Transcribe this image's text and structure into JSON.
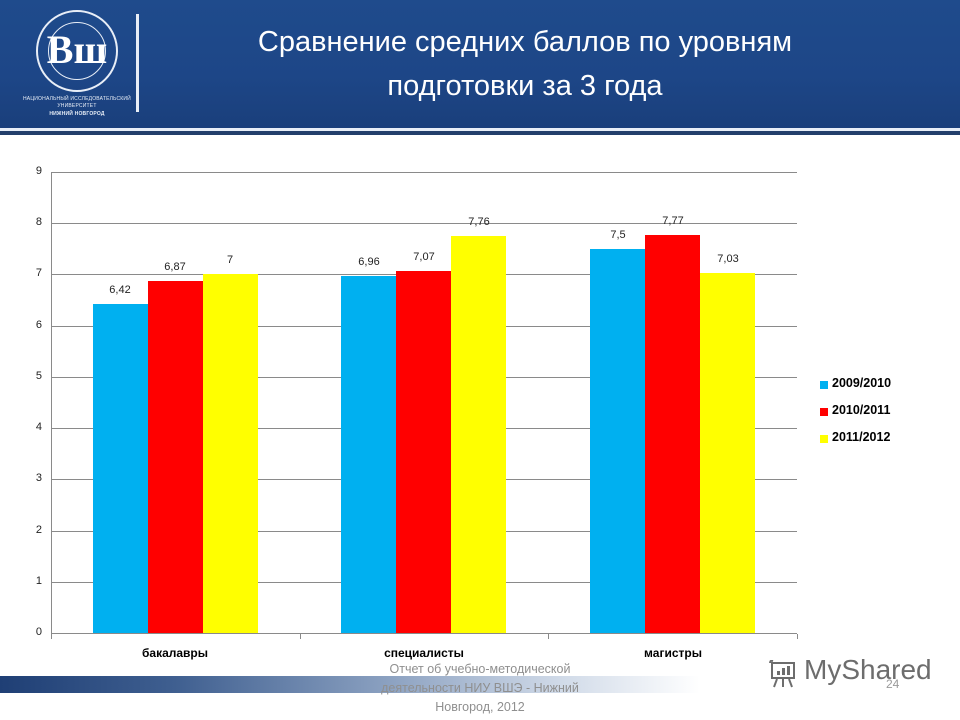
{
  "header": {
    "title_line1": "Сравнение средних баллов по уровням",
    "title_line2": "подготовки за 3 года",
    "logo": {
      "glyph": "Вш",
      "line1": "НАЦИОНАЛЬНЫЙ ИССЛЕДОВАТЕЛЬСКИЙ",
      "line2": "УНИВЕРСИТЕТ",
      "line3": "НИЖНИЙ НОВГОРОД"
    }
  },
  "colors": {
    "header_bg": "#1f4b8c",
    "series_2009": "#00b0f0",
    "series_2010": "#ff0000",
    "series_2011": "#ffff00"
  },
  "chart_data": {
    "type": "bar",
    "title": "Сравнение средних баллов по уровням подготовки за 3 года",
    "xlabel": "",
    "ylabel": "",
    "ylim": [
      0,
      9
    ],
    "yticks": [
      "0",
      "1",
      "2",
      "3",
      "4",
      "5",
      "6",
      "7",
      "8",
      "9"
    ],
    "grid": true,
    "legend_position": "right",
    "categories": [
      "бакалавры",
      "специалисты",
      "магистры"
    ],
    "series": [
      {
        "name": "2009/2010",
        "color": "#00b0f0",
        "values": [
          6.42,
          6.96,
          7.5
        ],
        "labels": [
          "6,42",
          "6,96",
          "7,5"
        ]
      },
      {
        "name": "2010/2011",
        "color": "#ff0000",
        "values": [
          6.87,
          7.07,
          7.77
        ],
        "labels": [
          "6,87",
          "7,07",
          "7,77"
        ]
      },
      {
        "name": "2011/2012",
        "color": "#ffff00",
        "values": [
          7.0,
          7.76,
          7.03
        ],
        "labels": [
          "7",
          "7,76",
          "7,03"
        ]
      }
    ]
  },
  "footer": {
    "text_line1": "Отчет об учебно-методической",
    "text_line2": "деятельности НИУ ВШЭ - Нижний",
    "text_line3": "Новгород, 2012",
    "page_number": "24",
    "watermark": "MyShared"
  }
}
